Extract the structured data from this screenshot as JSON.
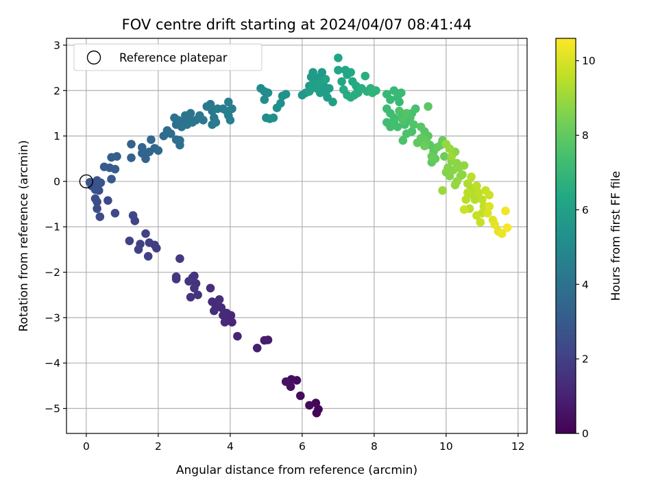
{
  "chart_data": {
    "type": "scatter",
    "title": "FOV centre drift starting at 2024/04/07 08:41:44",
    "xlabel": "Angular distance from reference (arcmin)",
    "ylabel": "Rotation from reference (arcmin)",
    "xlim": [
      -0.55,
      12.25
    ],
    "ylim": [
      -5.55,
      3.15
    ],
    "xticks": [
      0,
      2,
      4,
      6,
      8,
      10,
      12
    ],
    "yticks": [
      -5,
      -4,
      -3,
      -2,
      -1,
      0,
      1,
      2,
      3
    ],
    "grid": true,
    "legend": {
      "placement": "top-left",
      "entries": [
        {
          "label": "Reference platepar",
          "marker": "open-circle"
        }
      ]
    },
    "reference_point": {
      "x": 0,
      "y": 0
    },
    "colorbar": {
      "label": "Hours from first FF file",
      "colormap": "viridis",
      "range": [
        0,
        10.6
      ],
      "ticks": [
        0,
        2,
        4,
        6,
        8,
        10
      ]
    },
    "series": [
      {
        "name": "drift",
        "columns": [
          "x",
          "y",
          "hours"
        ],
        "points": [
          [
            6.4,
            -5.1,
            0.05
          ],
          [
            6.45,
            -5.02,
            0.1
          ],
          [
            6.38,
            -4.88,
            0.15
          ],
          [
            6.2,
            -4.93,
            0.2
          ],
          [
            5.95,
            -4.72,
            0.3
          ],
          [
            5.85,
            -4.38,
            0.35
          ],
          [
            5.7,
            -4.36,
            0.4
          ],
          [
            5.68,
            -4.52,
            0.45
          ],
          [
            5.55,
            -4.41,
            0.5
          ],
          [
            5.05,
            -3.49,
            0.8
          ],
          [
            4.95,
            -3.5,
            0.85
          ],
          [
            4.75,
            -3.67,
            0.9
          ],
          [
            4.2,
            -3.41,
            1.05
          ],
          [
            4.05,
            -3.1,
            1.1
          ],
          [
            4.02,
            -2.95,
            1.15
          ],
          [
            3.95,
            -3.03,
            1.2
          ],
          [
            3.9,
            -2.9,
            1.22
          ],
          [
            3.85,
            -3.1,
            1.25
          ],
          [
            3.8,
            -2.95,
            1.27
          ],
          [
            3.75,
            -2.78,
            1.3
          ],
          [
            3.6,
            -2.75,
            1.33
          ],
          [
            3.55,
            -2.85,
            1.35
          ],
          [
            3.5,
            -2.65,
            1.37
          ],
          [
            3.45,
            -2.35,
            1.4
          ],
          [
            3.7,
            -2.6,
            1.42
          ],
          [
            3.0,
            -2.08,
            1.5
          ],
          [
            3.05,
            -2.25,
            1.52
          ],
          [
            3.1,
            -2.5,
            1.55
          ],
          [
            2.9,
            -2.55,
            1.57
          ],
          [
            2.85,
            -2.2,
            1.6
          ],
          [
            3.0,
            -2.35,
            1.62
          ],
          [
            2.5,
            -2.15,
            1.65
          ],
          [
            2.5,
            -2.1,
            1.68
          ],
          [
            2.95,
            -2.12,
            1.7
          ],
          [
            2.6,
            -1.7,
            1.8
          ],
          [
            1.95,
            -1.47,
            1.9
          ],
          [
            1.9,
            -1.4,
            1.93
          ],
          [
            1.75,
            -1.35,
            1.95
          ],
          [
            1.72,
            -1.65,
            1.98
          ],
          [
            1.5,
            -1.38,
            2.0
          ],
          [
            1.45,
            -1.5,
            2.02
          ],
          [
            1.65,
            -1.15,
            2.05
          ],
          [
            1.2,
            -1.31,
            2.1
          ],
          [
            1.35,
            -0.87,
            2.15
          ],
          [
            1.3,
            -0.75,
            2.18
          ],
          [
            0.8,
            -0.7,
            2.3
          ],
          [
            0.6,
            -0.42,
            2.35
          ],
          [
            0.38,
            -0.78,
            2.4
          ],
          [
            0.3,
            -0.6,
            2.45
          ],
          [
            0.25,
            -0.38,
            2.5
          ],
          [
            0.3,
            -0.45,
            2.52
          ],
          [
            0.35,
            -0.2,
            2.55
          ],
          [
            0.3,
            -0.12,
            2.58
          ],
          [
            0.2,
            -0.05,
            2.6
          ],
          [
            0.15,
            -0.1,
            2.62
          ],
          [
            0.4,
            -0.03,
            2.65
          ],
          [
            0.1,
            -0.02,
            2.68
          ],
          [
            0.25,
            -0.18,
            2.7
          ],
          [
            0.3,
            0.02,
            2.75
          ],
          [
            0.7,
            0.05,
            3.0
          ],
          [
            0.5,
            0.32,
            3.05
          ],
          [
            0.65,
            0.3,
            3.08
          ],
          [
            0.8,
            0.27,
            3.1
          ],
          [
            0.7,
            0.53,
            3.15
          ],
          [
            0.85,
            0.55,
            3.18
          ],
          [
            1.25,
            0.52,
            3.3
          ],
          [
            1.25,
            0.82,
            3.35
          ],
          [
            1.55,
            0.62,
            3.4
          ],
          [
            1.55,
            0.75,
            3.42
          ],
          [
            1.65,
            0.5,
            3.45
          ],
          [
            1.75,
            0.65,
            3.5
          ],
          [
            1.8,
            0.92,
            3.55
          ],
          [
            1.9,
            0.73,
            3.58
          ],
          [
            2.0,
            0.68,
            3.6
          ],
          [
            2.15,
            1.0,
            3.7
          ],
          [
            2.25,
            1.12,
            3.75
          ],
          [
            2.35,
            1.05,
            3.78
          ],
          [
            2.5,
            0.92,
            3.8
          ],
          [
            2.6,
            0.9,
            3.82
          ],
          [
            2.6,
            0.8,
            3.85
          ],
          [
            2.45,
            1.4,
            3.9
          ],
          [
            2.5,
            1.25,
            3.92
          ],
          [
            2.55,
            1.35,
            3.95
          ],
          [
            2.65,
            1.2,
            3.97
          ],
          [
            2.7,
            1.3,
            4.0
          ],
          [
            2.75,
            1.45,
            4.02
          ],
          [
            2.85,
            1.4,
            4.05
          ],
          [
            2.9,
            1.5,
            4.08
          ],
          [
            2.8,
            1.25,
            4.1
          ],
          [
            2.95,
            1.3,
            4.12
          ],
          [
            3.05,
            1.35,
            4.15
          ],
          [
            3.15,
            1.45,
            4.18
          ],
          [
            3.25,
            1.35,
            4.2
          ],
          [
            3.35,
            1.65,
            4.22
          ],
          [
            3.45,
            1.7,
            4.25
          ],
          [
            3.5,
            1.55,
            4.27
          ],
          [
            3.55,
            1.4,
            4.3
          ],
          [
            3.5,
            1.25,
            4.32
          ],
          [
            3.6,
            1.3,
            4.35
          ],
          [
            3.65,
            1.6,
            4.37
          ],
          [
            3.8,
            1.6,
            4.4
          ],
          [
            3.95,
            1.75,
            4.45
          ],
          [
            4.05,
            1.6,
            4.48
          ],
          [
            3.95,
            1.45,
            4.5
          ],
          [
            4.0,
            1.35,
            4.52
          ],
          [
            3.9,
            1.55,
            4.55
          ],
          [
            4.85,
            2.05,
            5.05
          ],
          [
            4.95,
            1.98,
            5.08
          ],
          [
            4.95,
            1.8,
            5.1
          ],
          [
            5.05,
            1.95,
            5.12
          ],
          [
            5.0,
            1.4,
            5.15
          ],
          [
            5.1,
            1.38,
            5.18
          ],
          [
            5.2,
            1.4,
            5.2
          ],
          [
            5.3,
            1.62,
            5.22
          ],
          [
            5.4,
            1.72,
            5.25
          ],
          [
            5.45,
            1.88,
            5.28
          ],
          [
            5.55,
            1.92,
            5.3
          ],
          [
            6.0,
            1.9,
            5.6
          ],
          [
            6.1,
            1.95,
            5.62
          ],
          [
            6.2,
            2.1,
            5.65
          ],
          [
            6.25,
            2.3,
            5.68
          ],
          [
            6.3,
            2.4,
            5.7
          ],
          [
            6.35,
            2.2,
            5.72
          ],
          [
            6.45,
            2.28,
            5.75
          ],
          [
            6.55,
            2.4,
            5.78
          ],
          [
            6.6,
            2.1,
            5.8
          ],
          [
            6.65,
            1.95,
            5.82
          ],
          [
            6.7,
            1.85,
            5.85
          ],
          [
            6.75,
            2.05,
            5.88
          ],
          [
            6.5,
            1.95,
            5.9
          ],
          [
            6.85,
            1.75,
            5.92
          ],
          [
            6.4,
            2.05,
            5.95
          ],
          [
            6.2,
            1.98,
            5.97
          ],
          [
            6.3,
            2.15,
            6.0
          ],
          [
            6.5,
            2.15,
            6.05
          ],
          [
            6.65,
            2.25,
            6.08
          ],
          [
            7.0,
            2.72,
            6.2
          ],
          [
            7.0,
            2.45,
            6.25
          ],
          [
            7.1,
            2.2,
            6.28
          ],
          [
            7.2,
            2.45,
            6.3
          ],
          [
            7.25,
            2.35,
            6.32
          ],
          [
            7.35,
            2.4,
            6.35
          ],
          [
            7.4,
            2.2,
            6.38
          ],
          [
            7.5,
            2.1,
            6.4
          ],
          [
            7.55,
            2.0,
            6.45
          ],
          [
            7.15,
            2.02,
            6.48
          ],
          [
            7.25,
            1.9,
            6.5
          ],
          [
            7.35,
            1.85,
            6.52
          ],
          [
            7.45,
            1.9,
            6.55
          ],
          [
            7.55,
            1.95,
            6.58
          ],
          [
            7.65,
            2.05,
            6.6
          ],
          [
            7.75,
            2.32,
            6.65
          ],
          [
            7.8,
            1.98,
            6.7
          ],
          [
            7.9,
            2.05,
            6.75
          ],
          [
            8.05,
            2.0,
            6.8
          ],
          [
            7.95,
            1.95,
            6.85
          ],
          [
            8.35,
            1.92,
            7.0
          ],
          [
            8.45,
            1.8,
            7.05
          ],
          [
            8.55,
            2.0,
            7.08
          ],
          [
            8.65,
            1.85,
            7.1
          ],
          [
            8.7,
            1.75,
            7.12
          ],
          [
            8.75,
            1.95,
            7.15
          ],
          [
            8.35,
            1.6,
            7.2
          ],
          [
            8.45,
            1.5,
            7.25
          ],
          [
            8.55,
            1.4,
            7.28
          ],
          [
            8.35,
            1.3,
            7.3
          ],
          [
            8.45,
            1.2,
            7.32
          ],
          [
            8.55,
            1.3,
            7.35
          ],
          [
            8.65,
            1.2,
            7.38
          ],
          [
            8.75,
            1.4,
            7.4
          ],
          [
            8.85,
            1.25,
            7.42
          ],
          [
            8.95,
            1.35,
            7.45
          ],
          [
            9.05,
            1.5,
            7.48
          ],
          [
            9.15,
            1.6,
            7.5
          ],
          [
            9.0,
            1.4,
            7.52
          ],
          [
            9.05,
            1.1,
            7.55
          ],
          [
            8.9,
            1.05,
            7.58
          ],
          [
            8.8,
            0.9,
            7.6
          ],
          [
            8.7,
            1.55,
            7.62
          ],
          [
            8.8,
            1.35,
            7.65
          ],
          [
            8.9,
            1.5,
            7.68
          ],
          [
            9.1,
            1.25,
            7.7
          ],
          [
            9.3,
            1.2,
            7.8
          ],
          [
            9.4,
            1.1,
            7.82
          ],
          [
            9.5,
            1.0,
            7.85
          ],
          [
            9.5,
            1.65,
            7.88
          ],
          [
            9.55,
            0.8,
            7.9
          ],
          [
            9.65,
            0.65,
            7.92
          ],
          [
            9.6,
            0.42,
            7.95
          ],
          [
            9.2,
            0.85,
            7.97
          ],
          [
            9.3,
            0.95,
            8.0
          ],
          [
            9.45,
            0.9,
            8.02
          ],
          [
            9.7,
            0.5,
            8.05
          ],
          [
            9.75,
            0.75,
            8.08
          ],
          [
            9.6,
            0.55,
            8.1
          ],
          [
            9.85,
            0.8,
            8.12
          ],
          [
            9.9,
            0.9,
            8.15
          ],
          [
            9.95,
            0.55,
            8.18
          ],
          [
            9.4,
            0.78,
            8.2
          ],
          [
            10.0,
            0.2,
            8.6
          ],
          [
            10.05,
            0.3,
            8.62
          ],
          [
            10.1,
            0.12,
            8.65
          ],
          [
            10.15,
            0.45,
            8.68
          ],
          [
            10.2,
            0.25,
            8.7
          ],
          [
            10.25,
            0.65,
            8.72
          ],
          [
            10.3,
            0.4,
            8.75
          ],
          [
            10.35,
            0.3,
            8.78
          ],
          [
            10.4,
            0.12,
            8.8
          ],
          [
            10.45,
            0.15,
            8.82
          ],
          [
            10.5,
            0.35,
            8.85
          ],
          [
            10.3,
            0.0,
            8.88
          ],
          [
            10.25,
            -0.08,
            8.9
          ],
          [
            10.0,
            0.82,
            8.92
          ],
          [
            10.1,
            0.72,
            8.95
          ],
          [
            9.9,
            -0.2,
            8.98
          ],
          [
            10.15,
            0.55,
            9.0
          ],
          [
            10.6,
            -0.05,
            9.3
          ],
          [
            10.7,
            -0.15,
            9.35
          ],
          [
            10.75,
            -0.3,
            9.38
          ],
          [
            10.8,
            -0.4,
            9.4
          ],
          [
            10.65,
            -0.6,
            9.45
          ],
          [
            10.55,
            -0.4,
            9.48
          ],
          [
            10.6,
            -0.25,
            9.5
          ],
          [
            10.7,
            0.1,
            9.52
          ],
          [
            10.85,
            -0.1,
            9.55
          ],
          [
            10.9,
            -0.25,
            9.58
          ],
          [
            11.0,
            -0.4,
            9.6
          ],
          [
            11.05,
            -0.55,
            9.62
          ],
          [
            11.0,
            -0.7,
            9.65
          ],
          [
            10.85,
            -0.75,
            9.68
          ],
          [
            10.95,
            -0.9,
            9.7
          ],
          [
            11.1,
            -0.2,
            9.72
          ],
          [
            11.2,
            -0.3,
            9.75
          ],
          [
            10.5,
            -0.62,
            9.78
          ],
          [
            11.15,
            -0.7,
            10.0
          ],
          [
            11.2,
            -0.55,
            10.05
          ],
          [
            11.3,
            -0.85,
            10.1
          ],
          [
            11.35,
            -0.95,
            10.15
          ],
          [
            11.45,
            -1.1,
            10.2
          ],
          [
            11.55,
            -1.15,
            10.3
          ],
          [
            11.65,
            -0.65,
            10.4
          ],
          [
            11.7,
            -1.02,
            10.5
          ]
        ]
      }
    ]
  }
}
